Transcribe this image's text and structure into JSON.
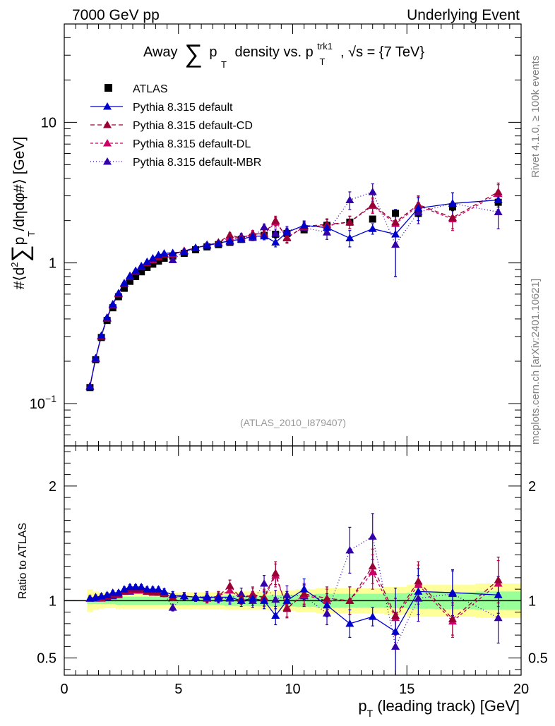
{
  "header": {
    "left": "7000 GeV pp",
    "right": "Underlying Event"
  },
  "side_labels": {
    "rivet": "Rivet 4.1.0, ≥ 100k events",
    "mcplots": "mcplots.cern.ch [arXiv:2401.10621]"
  },
  "chart_data": [
    {
      "type": "scatter",
      "panel": "main",
      "title": {
        "prefix": "Away",
        "sum": "∑",
        "p": "p",
        "T": "T",
        "mid": "density vs. p",
        "sup": "trk1",
        "sub": "T",
        "tail": ", √s = {7 TeV}"
      },
      "ylabel": {
        "pre": "#⟨d",
        "two": "2",
        "sum": "∑",
        "p": "p",
        "T": "T",
        "post": "/dηdφ#⟩ [GeV]"
      },
      "yscale": "log",
      "ylim": [
        0.05,
        50
      ],
      "xlim": [
        0,
        20
      ],
      "y_ticks": [
        {
          "value": 0.1,
          "base": "10",
          "exp": "−1"
        },
        {
          "value": 1,
          "base": "1",
          "exp": ""
        },
        {
          "value": 10,
          "base": "10",
          "exp": ""
        }
      ],
      "annotation": "(ATLAS_2010_I879407)",
      "legend": [
        {
          "key": "atlas",
          "label": "ATLAS"
        },
        {
          "key": "default",
          "label": "Pythia 8.315 default"
        },
        {
          "key": "cd",
          "label": "Pythia 8.315 default-CD"
        },
        {
          "key": "dl",
          "label": "Pythia 8.315 default-DL"
        },
        {
          "key": "mbr",
          "label": "Pythia 8.315 default-MBR"
        }
      ],
      "x": [
        1.125,
        1.375,
        1.625,
        1.875,
        2.125,
        2.375,
        2.625,
        2.875,
        3.125,
        3.375,
        3.625,
        3.875,
        4.125,
        4.375,
        4.75,
        5.25,
        5.75,
        6.25,
        6.75,
        7.25,
        7.75,
        8.25,
        8.75,
        9.25,
        9.75,
        10.5,
        11.5,
        12.5,
        13.5,
        14.5,
        15.5,
        17.0,
        19.0
      ],
      "series": [
        {
          "key": "atlas",
          "name": "ATLAS",
          "color": "#000000",
          "marker": "square",
          "dash": "",
          "values": [
            0.13,
            0.205,
            0.295,
            0.39,
            0.48,
            0.575,
            0.66,
            0.74,
            0.8,
            0.865,
            0.93,
            0.98,
            1.03,
            1.08,
            1.12,
            1.17,
            1.24,
            1.3,
            1.35,
            1.4,
            1.47,
            1.52,
            1.57,
            1.6,
            1.62,
            1.72,
            1.85,
            1.95,
            2.05,
            2.25,
            2.25,
            2.5,
            2.7
          ],
          "err": [
            0.005,
            0.006,
            0.008,
            0.01,
            0.01,
            0.012,
            0.014,
            0.015,
            0.016,
            0.017,
            0.018,
            0.019,
            0.02,
            0.02,
            0.02,
            0.02,
            0.02,
            0.02,
            0.02,
            0.03,
            0.03,
            0.03,
            0.03,
            0.03,
            0.03,
            0.04,
            0.05,
            0.06,
            0.08,
            0.1,
            0.12,
            0.15,
            0.2
          ]
        },
        {
          "key": "default",
          "name": "Pythia 8.315 default",
          "color": "#0000cc",
          "marker": "triangle",
          "dash": "",
          "values": [
            0.132,
            0.21,
            0.305,
            0.41,
            0.51,
            0.61,
            0.72,
            0.81,
            0.88,
            0.95,
            1.02,
            1.08,
            1.14,
            1.17,
            1.18,
            1.2,
            1.28,
            1.33,
            1.38,
            1.44,
            1.47,
            1.55,
            1.55,
            1.4,
            1.65,
            1.85,
            1.78,
            1.5,
            1.75,
            1.6,
            2.45,
            2.65,
            2.8
          ],
          "err": [
            0.002,
            0.003,
            0.004,
            0.005,
            0.006,
            0.007,
            0.008,
            0.01,
            0.012,
            0.014,
            0.016,
            0.018,
            0.02,
            0.025,
            0.03,
            0.035,
            0.04,
            0.045,
            0.05,
            0.06,
            0.07,
            0.08,
            0.09,
            0.1,
            0.12,
            0.14,
            0.18,
            0.2,
            0.15,
            0.8,
            0.45,
            0.5,
            0.4
          ]
        },
        {
          "key": "cd",
          "name": "Pythia 8.315 default-CD",
          "color": "#990033",
          "marker": "triangle",
          "dash": "6,4",
          "values": [
            0.133,
            0.21,
            0.303,
            0.405,
            0.505,
            0.605,
            0.715,
            0.81,
            0.88,
            0.95,
            1.0,
            1.06,
            1.1,
            1.15,
            1.15,
            1.22,
            1.28,
            1.33,
            1.4,
            1.58,
            1.5,
            1.6,
            1.62,
            2.0,
            1.5,
            1.82,
            1.88,
            1.95,
            2.6,
            1.95,
            2.6,
            2.1,
            3.2
          ],
          "err": [
            0.002,
            0.003,
            0.004,
            0.005,
            0.006,
            0.007,
            0.008,
            0.01,
            0.012,
            0.014,
            0.016,
            0.018,
            0.02,
            0.025,
            0.03,
            0.035,
            0.04,
            0.045,
            0.05,
            0.06,
            0.07,
            0.08,
            0.09,
            0.15,
            0.12,
            0.14,
            0.18,
            0.2,
            0.3,
            0.3,
            0.4,
            0.35,
            0.5
          ]
        },
        {
          "key": "dl",
          "name": "Pythia 8.315 default-DL",
          "color": "#cc0066",
          "marker": "triangle",
          "dash": "4,3",
          "values": [
            0.133,
            0.21,
            0.302,
            0.405,
            0.505,
            0.605,
            0.715,
            0.805,
            0.875,
            0.945,
            1.0,
            1.05,
            1.1,
            1.15,
            1.15,
            1.22,
            1.28,
            1.33,
            1.4,
            1.52,
            1.5,
            1.62,
            1.6,
            1.95,
            1.52,
            1.8,
            1.85,
            1.95,
            2.55,
            1.9,
            2.55,
            2.05,
            3.1
          ],
          "err": [
            0.002,
            0.003,
            0.004,
            0.005,
            0.006,
            0.007,
            0.008,
            0.01,
            0.012,
            0.014,
            0.016,
            0.018,
            0.02,
            0.025,
            0.03,
            0.035,
            0.04,
            0.045,
            0.05,
            0.06,
            0.07,
            0.08,
            0.09,
            0.15,
            0.12,
            0.14,
            0.18,
            0.2,
            0.3,
            0.3,
            0.4,
            0.35,
            0.5
          ]
        },
        {
          "key": "mbr",
          "name": "Pythia 8.315 default-MBR",
          "color": "#3300aa",
          "marker": "triangle",
          "dash": "1,3",
          "values": [
            0.132,
            0.208,
            0.3,
            0.402,
            0.5,
            0.6,
            0.71,
            0.8,
            0.87,
            0.94,
            1.0,
            1.06,
            1.1,
            1.15,
            1.05,
            1.22,
            1.28,
            1.35,
            1.38,
            1.42,
            1.55,
            1.52,
            1.8,
            1.62,
            1.7,
            1.78,
            1.65,
            2.8,
            3.2,
            1.35,
            2.3,
            2.65,
            2.3
          ],
          "err": [
            0.002,
            0.003,
            0.004,
            0.005,
            0.006,
            0.007,
            0.008,
            0.01,
            0.012,
            0.014,
            0.016,
            0.018,
            0.02,
            0.025,
            0.03,
            0.035,
            0.04,
            0.045,
            0.05,
            0.06,
            0.07,
            0.08,
            0.09,
            0.12,
            0.12,
            0.14,
            0.18,
            0.4,
            0.45,
            0.55,
            0.4,
            0.5,
            0.55
          ]
        }
      ]
    },
    {
      "type": "scatter",
      "panel": "ratio",
      "ylabel": "Ratio to ATLAS",
      "ylim": [
        0.35,
        2.35
      ],
      "xlim": [
        0,
        20
      ],
      "xlabel": {
        "p": "p",
        "T": "T",
        "rest": " (leading track) [GeV]"
      },
      "x_ticks": [
        0,
        5,
        10,
        15,
        20
      ],
      "y_ticks": [
        0.5,
        1,
        2
      ],
      "band_inner": [
        0.03,
        0.03,
        0.03,
        0.03,
        0.03,
        0.035,
        0.035,
        0.035,
        0.035,
        0.035,
        0.035,
        0.035,
        0.035,
        0.035,
        0.035,
        0.04,
        0.04,
        0.04,
        0.04,
        0.045,
        0.045,
        0.045,
        0.045,
        0.05,
        0.05,
        0.055,
        0.06,
        0.06,
        0.06,
        0.065,
        0.07,
        0.075,
        0.08
      ],
      "band_outer": [
        0.1,
        0.08,
        0.07,
        0.065,
        0.065,
        0.07,
        0.07,
        0.07,
        0.07,
        0.07,
        0.07,
        0.07,
        0.07,
        0.07,
        0.07,
        0.075,
        0.075,
        0.075,
        0.075,
        0.08,
        0.08,
        0.08,
        0.08,
        0.09,
        0.09,
        0.1,
        0.11,
        0.11,
        0.11,
        0.12,
        0.14,
        0.14,
        0.15
      ],
      "series": [
        {
          "key": "default",
          "values": [
            1.02,
            1.03,
            1.04,
            1.05,
            1.07,
            1.07,
            1.1,
            1.12,
            1.12,
            1.12,
            1.1,
            1.1,
            1.1,
            1.08,
            1.05,
            1.04,
            1.03,
            1.03,
            1.03,
            1.03,
            1.0,
            1.02,
            1.0,
            0.87,
            1.0,
            1.1,
            0.96,
            0.8,
            0.86,
            0.73,
            1.08,
            1.07,
            1.05
          ],
          "err": [
            0.02,
            0.02,
            0.02,
            0.02,
            0.02,
            0.02,
            0.02,
            0.02,
            0.02,
            0.02,
            0.02,
            0.02,
            0.02,
            0.025,
            0.03,
            0.03,
            0.035,
            0.04,
            0.04,
            0.05,
            0.05,
            0.06,
            0.07,
            0.08,
            0.08,
            0.09,
            0.1,
            0.12,
            0.08,
            0.38,
            0.2,
            0.2,
            0.16
          ]
        },
        {
          "key": "cd",
          "values": [
            1.02,
            1.03,
            1.03,
            1.04,
            1.05,
            1.06,
            1.08,
            1.1,
            1.1,
            1.1,
            1.08,
            1.08,
            1.07,
            1.06,
            1.03,
            1.04,
            1.03,
            1.02,
            1.04,
            1.13,
            1.02,
            1.05,
            1.03,
            1.24,
            0.93,
            1.06,
            1.02,
            1.0,
            1.3,
            0.87,
            1.17,
            0.84,
            1.18
          ],
          "err": [
            0.02,
            0.02,
            0.02,
            0.02,
            0.02,
            0.02,
            0.02,
            0.02,
            0.02,
            0.02,
            0.02,
            0.02,
            0.02,
            0.025,
            0.03,
            0.03,
            0.035,
            0.04,
            0.04,
            0.05,
            0.05,
            0.06,
            0.07,
            0.1,
            0.08,
            0.09,
            0.1,
            0.12,
            0.15,
            0.15,
            0.17,
            0.14,
            0.2
          ]
        },
        {
          "key": "dl",
          "values": [
            1.02,
            1.03,
            1.02,
            1.04,
            1.05,
            1.05,
            1.08,
            1.09,
            1.09,
            1.09,
            1.08,
            1.07,
            1.07,
            1.06,
            1.03,
            1.04,
            1.03,
            1.02,
            1.04,
            1.09,
            1.02,
            1.06,
            1.02,
            1.22,
            0.94,
            1.05,
            1.0,
            1.0,
            1.25,
            0.85,
            1.14,
            0.82,
            1.15
          ],
          "err": [
            0.02,
            0.02,
            0.02,
            0.02,
            0.02,
            0.02,
            0.02,
            0.02,
            0.02,
            0.02,
            0.02,
            0.02,
            0.02,
            0.025,
            0.03,
            0.03,
            0.035,
            0.04,
            0.04,
            0.05,
            0.05,
            0.06,
            0.07,
            0.1,
            0.08,
            0.09,
            0.1,
            0.12,
            0.15,
            0.15,
            0.17,
            0.14,
            0.2
          ]
        },
        {
          "key": "mbr",
          "values": [
            1.02,
            1.02,
            1.02,
            1.03,
            1.04,
            1.05,
            1.08,
            1.08,
            1.09,
            1.09,
            1.08,
            1.08,
            1.07,
            1.06,
            0.94,
            1.04,
            1.03,
            1.04,
            1.02,
            1.02,
            1.06,
            1.0,
            1.15,
            1.01,
            1.05,
            1.04,
            0.89,
            1.44,
            1.56,
            0.6,
            1.02,
            1.06,
            0.85
          ],
          "err": [
            0.02,
            0.02,
            0.02,
            0.02,
            0.02,
            0.02,
            0.02,
            0.02,
            0.02,
            0.02,
            0.02,
            0.02,
            0.02,
            0.025,
            0.03,
            0.03,
            0.035,
            0.04,
            0.04,
            0.05,
            0.05,
            0.06,
            0.07,
            0.08,
            0.08,
            0.09,
            0.1,
            0.2,
            0.2,
            0.3,
            0.2,
            0.2,
            0.22
          ]
        }
      ]
    }
  ]
}
